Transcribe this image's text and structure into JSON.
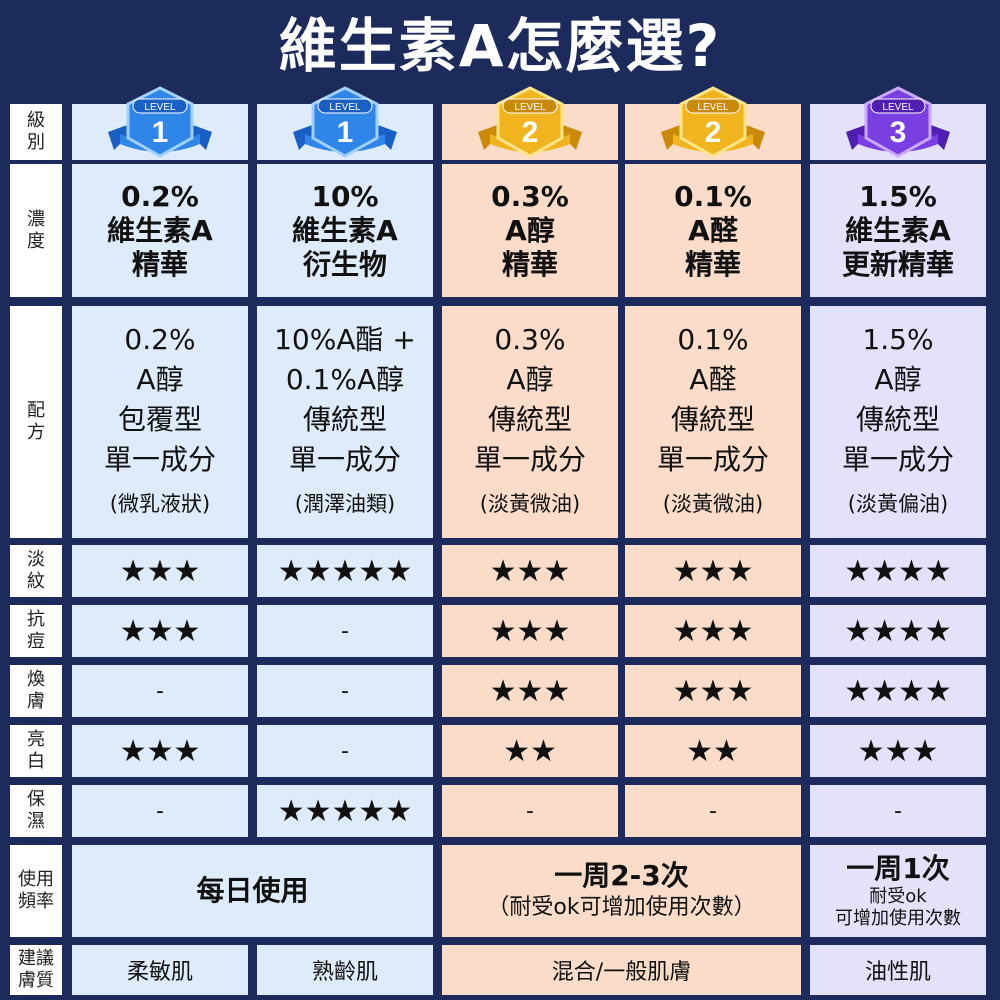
{
  "title": "維生素A怎麼選?",
  "row_labels": {
    "level": [
      "級",
      "別"
    ],
    "concentration": [
      "濃",
      "度"
    ],
    "formula": [
      "配",
      "方"
    ],
    "wrinkle": [
      "淡",
      "紋"
    ],
    "acne": [
      "抗",
      "痘"
    ],
    "radiance": [
      "煥",
      "膚"
    ],
    "brighten": [
      "亮",
      "白"
    ],
    "moisture": [
      "保",
      "濕"
    ],
    "frequency": [
      "使用",
      "頻率"
    ],
    "skin": [
      "建議",
      "膚質"
    ]
  },
  "colors": {
    "background": "#1c2b5c",
    "blue_cell": "#deebfa",
    "peach_cell": "#fbdcc8",
    "lavender_cell": "#e4e2fb",
    "level1_badge": "#2f86e8",
    "level2_badge": "#f0b41e",
    "level3_badge": "#7a3fe0"
  },
  "columns": [
    {
      "badge_tag": "LEVEL",
      "level": "1",
      "badge_icon": "level-1-badge-icon",
      "concentration": [
        "0.2%",
        "維生素A",
        "精華"
      ],
      "formula": [
        "0.2%",
        "A醇",
        "包覆型",
        "單一成分"
      ],
      "formula_note": "(微乳液狀)",
      "wrinkle": "★★★",
      "acne": "★★★",
      "radiance": "-",
      "brighten": "★★★",
      "moisture": "-"
    },
    {
      "badge_tag": "LEVEL",
      "level": "1",
      "badge_icon": "level-1-badge-icon",
      "concentration": [
        "10%",
        "維生素A",
        "衍生物"
      ],
      "formula": [
        "10%A酯 +",
        "0.1%A醇",
        "傳統型",
        "單一成分"
      ],
      "formula_note": "(潤澤油類)",
      "wrinkle": "★★★★★",
      "acne": "-",
      "radiance": "-",
      "brighten": "-",
      "moisture": "★★★★★"
    },
    {
      "badge_tag": "LEVEL",
      "level": "2",
      "badge_icon": "level-2-badge-icon",
      "concentration": [
        "0.3%",
        "A醇",
        "精華"
      ],
      "formula": [
        "0.3%",
        "A醇",
        "傳統型",
        "單一成分"
      ],
      "formula_note": "(淡黃微油)",
      "wrinkle": "★★★",
      "acne": "★★★",
      "radiance": "★★★",
      "brighten": "★★",
      "moisture": "-"
    },
    {
      "badge_tag": "LEVEL",
      "level": "2",
      "badge_icon": "level-2-badge-icon",
      "concentration": [
        "0.1%",
        "A醛",
        "精華"
      ],
      "formula": [
        "0.1%",
        "A醛",
        "傳統型",
        "單一成分"
      ],
      "formula_note": "(淡黃微油)",
      "wrinkle": "★★★",
      "acne": "★★★",
      "radiance": "★★★",
      "brighten": "★★",
      "moisture": "-"
    },
    {
      "badge_tag": "LEVEL",
      "level": "3",
      "badge_icon": "level-3-badge-icon",
      "concentration": [
        "1.5%",
        "維生素A",
        "更新精華"
      ],
      "formula": [
        "1.5%",
        "A醇",
        "傳統型",
        "單一成分"
      ],
      "formula_note": "(淡黃偏油)",
      "wrinkle": "★★★★",
      "acne": "★★★★",
      "radiance": "★★★★",
      "brighten": "★★★",
      "moisture": "-"
    }
  ],
  "frequency": {
    "group1": "每日使用",
    "group2_main": "一周2-3次",
    "group2_note": "（耐受ok可增加使用次數）",
    "group3_main": "一周1次",
    "group3_note1": "耐受ok",
    "group3_note2": "可增加使用次數"
  },
  "skin_type": {
    "col1": "柔敏肌",
    "col2": "熟齡肌",
    "group2": "混合/一般肌膚",
    "col5": "油性肌"
  }
}
